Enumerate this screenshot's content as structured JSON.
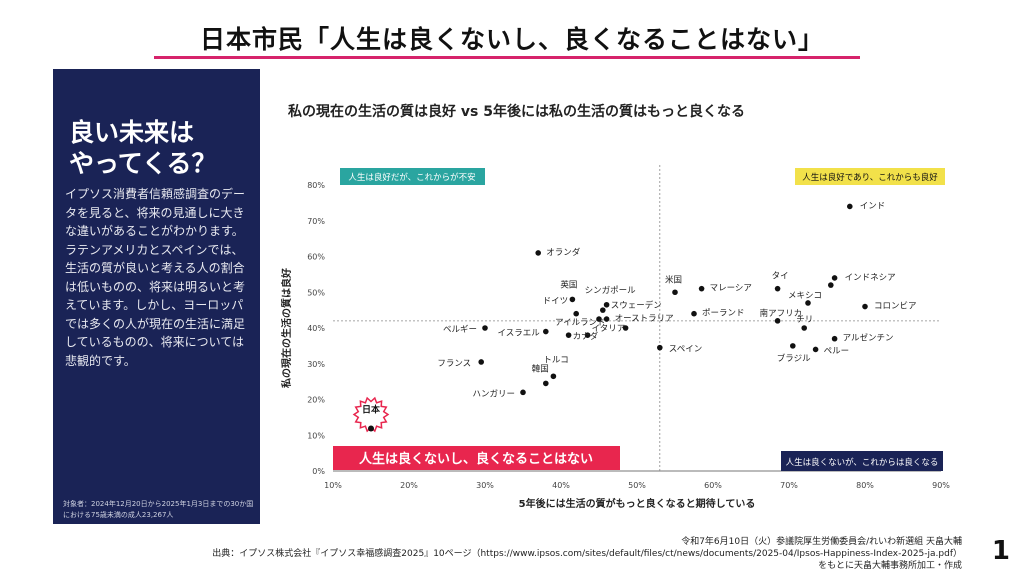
{
  "slide": {
    "title": "日本市民「人生は良くないし、良くなることはない」",
    "page_number": "1"
  },
  "left_panel": {
    "heading": "良い未来は\nやってくる？",
    "body": "イプソス消費者信頼感調査のデータを見ると、将来の見通しに大きな違いがあることがわかります。ラテンアメリカとスペインでは、生活の質が良いと考える人の割合は低いものの、将来は明るいと考えています。しかし、ヨーロッパでは多くの人が現在の生活に満足しているものの、将来については悲観的です。",
    "footnote": "対象者：2024年12月20日から2025年1月3日までの30か国における75歳未満の成人23,267人"
  },
  "footer": {
    "line1": "令和7年6月10日（火）参議院厚生労働委員会/れいわ新選組 天畠大輔",
    "line2": "出典：イプソス株式会社『イプソス幸福感調査2025』10ページ（https://www.ipsos.com/sites/default/files/ct/news/documents/2025-04/Ipsos-Happiness-Index-2025-ja.pdf）",
    "line3": "をもとに天畠大輔事務所加工・作成"
  },
  "colors": {
    "panel_bg": "#1a2356",
    "accent_pink": "#d6236b",
    "teal": "#2aa5a0",
    "yellow": "#f2e14a",
    "navy": "#1a2356",
    "highlight_red": "#e8264e"
  },
  "chart_data": {
    "type": "scatter",
    "title": "私の現在の生活の質は良好 vs 5年後には私の生活の質はもっと良くなる",
    "xlabel": "5年後には生活の質がもっと良くなると期待している",
    "ylabel": "私の現在の生活の質は良好",
    "xlim": [
      10,
      90
    ],
    "ylim": [
      0,
      80
    ],
    "x_ticks": [
      "10%",
      "20%",
      "30%",
      "40%",
      "50%",
      "60%",
      "70%",
      "80%",
      "90%"
    ],
    "y_ticks": [
      "0%",
      "10%",
      "20%",
      "30%",
      "40%",
      "50%",
      "60%",
      "70%",
      "80%"
    ],
    "grid": false,
    "reference_lines": {
      "x": 53,
      "y": 42
    },
    "quadrant_labels": {
      "top_left": "人生は良好だが、これからが不安",
      "top_right": "人生は良好であり、これからも良好",
      "bottom_left": "人生は良くないし、良くなることはない",
      "bottom_right": "人生は良くないが、これからは良くなる"
    },
    "points": [
      {
        "name": "インド",
        "x": 78,
        "y": 74
      },
      {
        "name": "オランダ",
        "x": 37,
        "y": 61
      },
      {
        "name": "米国",
        "x": 55,
        "y": 50
      },
      {
        "name": "マレーシア",
        "x": 58.5,
        "y": 51
      },
      {
        "name": "タイ",
        "x": 68.5,
        "y": 51
      },
      {
        "name": "インドネシア",
        "x": 76,
        "y": 54
      },
      {
        "name": "",
        "x": 75.5,
        "y": 52
      },
      {
        "name": "メキシコ",
        "x": 72.5,
        "y": 47
      },
      {
        "name": "コロンビア",
        "x": 80,
        "y": 46
      },
      {
        "name": "ポーランド",
        "x": 57.5,
        "y": 44
      },
      {
        "name": "チリ",
        "x": 72,
        "y": 40
      },
      {
        "name": "南アフリカ",
        "x": 68.5,
        "y": 42
      },
      {
        "name": "アルゼンチン",
        "x": 76,
        "y": 37
      },
      {
        "name": "ブラジル",
        "x": 70.5,
        "y": 35
      },
      {
        "name": "ペルー",
        "x": 73.5,
        "y": 34
      },
      {
        "name": "スペイン",
        "x": 53,
        "y": 34.5
      },
      {
        "name": "英国",
        "x": 41.5,
        "y": 48
      },
      {
        "name": "シンガポール",
        "x": 46,
        "y": 46.5
      },
      {
        "name": "スウェーデン",
        "x": 45.5,
        "y": 45
      },
      {
        "name": "ドイツ",
        "x": 42,
        "y": 44
      },
      {
        "name": "アイルランド",
        "x": 45,
        "y": 42.5
      },
      {
        "name": "オーストラリア",
        "x": 46,
        "y": 42.5
      },
      {
        "name": "",
        "x": 48.5,
        "y": 40
      },
      {
        "name": "イタリア",
        "x": 43.5,
        "y": 38
      },
      {
        "name": "イスラエル",
        "x": 38,
        "y": 39
      },
      {
        "name": "カナダ",
        "x": 41,
        "y": 38
      },
      {
        "name": "ベルギー",
        "x": 30,
        "y": 40
      },
      {
        "name": "フランス",
        "x": 29.5,
        "y": 30.5
      },
      {
        "name": "トルコ",
        "x": 39,
        "y": 26.5
      },
      {
        "name": "韓国",
        "x": 38,
        "y": 24.5
      },
      {
        "name": "ハンガリー",
        "x": 35,
        "y": 22
      },
      {
        "name": "日本",
        "x": 15,
        "y": 13
      }
    ]
  }
}
